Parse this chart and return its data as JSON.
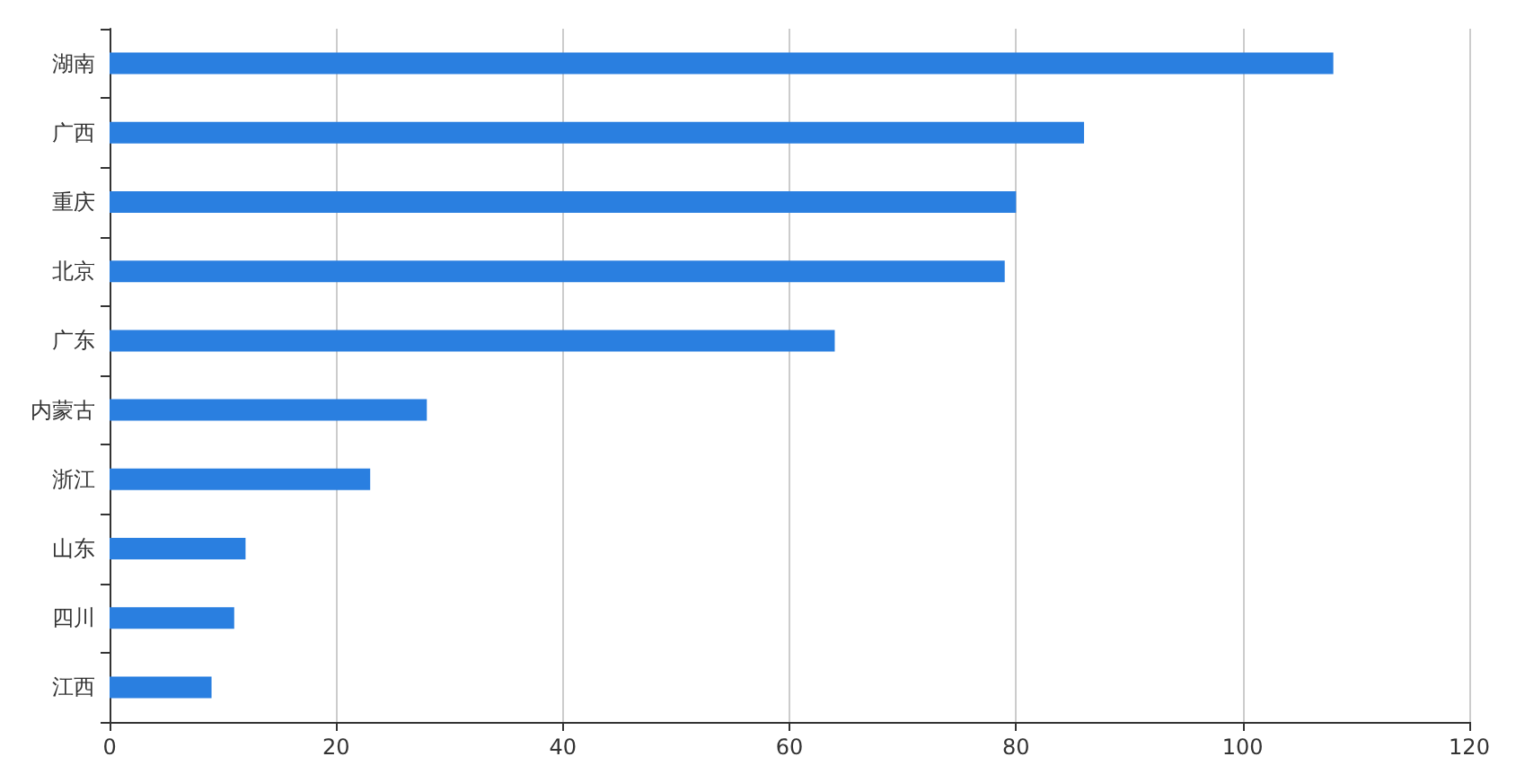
{
  "chart_data": {
    "type": "bar",
    "orientation": "horizontal",
    "categories": [
      "湖南",
      "广西",
      "重庆",
      "北京",
      "广东",
      "内蒙古",
      "浙江",
      "山东",
      "四川",
      "江西"
    ],
    "values": [
      108,
      86,
      80,
      79,
      64,
      28,
      23,
      12,
      11,
      9
    ],
    "color": "#2a7fe0",
    "xlim": [
      0,
      120
    ],
    "xticks": [
      0,
      20,
      40,
      60,
      80,
      100,
      120
    ],
    "grid": "x"
  }
}
